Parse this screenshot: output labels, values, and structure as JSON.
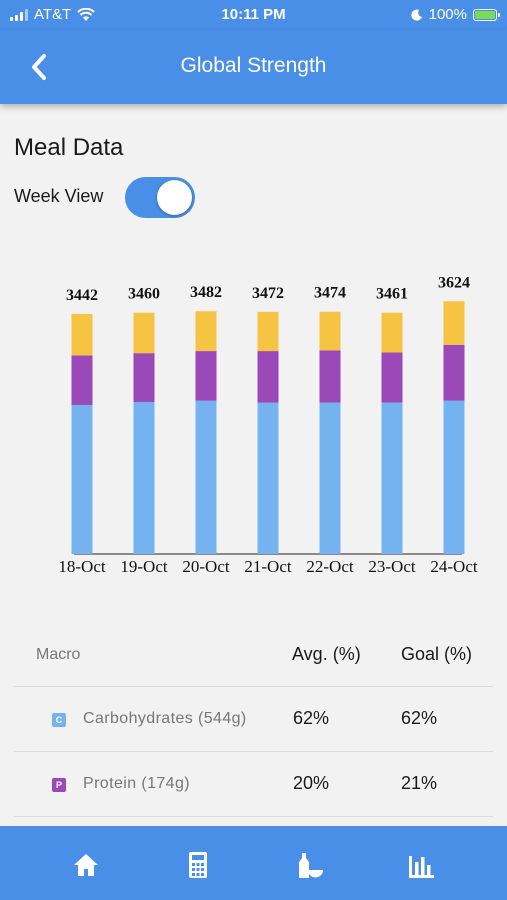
{
  "status_bar": {
    "carrier": "AT&T",
    "time": "10:11 PM",
    "battery": "100%"
  },
  "header": {
    "title": "Global Strength"
  },
  "section": {
    "title": "Meal Data",
    "toggle_label": "Week View",
    "toggle_on": true
  },
  "chart_data": {
    "type": "bar",
    "stacked": true,
    "categories": [
      "18-Oct",
      "19-Oct",
      "20-Oct",
      "21-Oct",
      "22-Oct",
      "23-Oct",
      "24-Oct"
    ],
    "totals": [
      3442,
      3460,
      3482,
      3472,
      3474,
      3461,
      3624
    ],
    "series": [
      {
        "values": [
          2137,
          2180,
          2200,
          2170,
          2170,
          2170,
          2200
        ],
        "color": "#74b3ef"
      },
      {
        "values": [
          711,
          700,
          710,
          740,
          750,
          720,
          800
        ],
        "color": "#9b49b8"
      },
      {
        "values": [
          594,
          580,
          572,
          562,
          554,
          571,
          624
        ],
        "color": "#f6c343"
      }
    ],
    "ylim": [
      0,
      3800
    ],
    "grid": false,
    "legend": "none"
  },
  "macro_table": {
    "headers": [
      "Macro",
      "Avg. (%)",
      "Goal (%)"
    ],
    "rows": [
      {
        "badge": "C",
        "badge_color": "#74b3ef",
        "name": "Carbohydrates (544g)",
        "avg": "62%",
        "goal": "62%"
      },
      {
        "badge": "P",
        "badge_color": "#9b49b8",
        "name": "Protein (174g)",
        "avg": "20%",
        "goal": "21%"
      }
    ]
  },
  "bottom_nav": {
    "items": [
      "home-icon",
      "calculator-icon",
      "bottle-bowl-icon",
      "bar-chart-icon"
    ]
  },
  "colors": {
    "primary": "#4a8fe7",
    "background": "#f2f2f2"
  }
}
